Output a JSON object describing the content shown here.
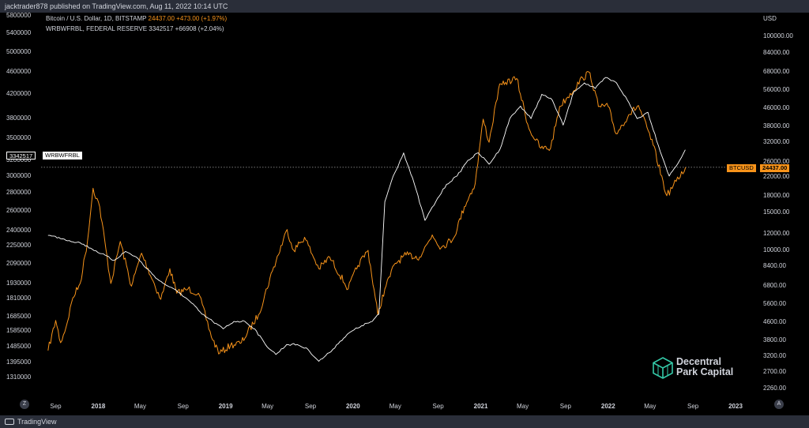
{
  "header": {
    "publisher": "jacktrader878 published on TradingView.com, Aug 11, 2022 10:14 UTC"
  },
  "legend": {
    "line1_name": "Bitcoin / U.S. Dollar, 1D, BITSTAMP",
    "line1_value": "24437.00",
    "line1_change": "+473.00 (+1.97%)",
    "line2_name": "WRBWFRBL, FEDERAL RESERVE",
    "line2_value": "3342517",
    "line2_change": "+66908 (+2.04%)"
  },
  "footer": {
    "brand": "TradingView",
    "btn_left": "Z",
    "btn_right": "A"
  },
  "watermark": {
    "line1": "Decentral",
    "line2": "Park Capital"
  },
  "colors": {
    "btc": "#f7931a",
    "fed": "#ffffff",
    "background": "#000000",
    "frame": "#2a2e39"
  },
  "labels": {
    "left_flag": "3342517",
    "left_flag_name": "WRBWFRBL",
    "right_flag_name": "BTCUSD",
    "right_flag_value": "24437.00"
  },
  "chart_data": {
    "type": "line",
    "x_ticks": [
      "Sep",
      "2018",
      "May",
      "Sep",
      "2019",
      "May",
      "Sep",
      "2020",
      "May",
      "Sep",
      "2021",
      "May",
      "Sep",
      "2022",
      "May",
      "Sep",
      "2023"
    ],
    "x_year_ticks": [
      "2018",
      "2019",
      "2020",
      "2021",
      "2022",
      "2023"
    ],
    "left_axis": {
      "series": "WRBWFRBL",
      "ticks": [
        "5800000",
        "5400000",
        "5000000",
        "4600000",
        "4200000",
        "3800000",
        "3500000",
        "3200000",
        "3000000",
        "2800000",
        "2600000",
        "2400000",
        "2250000",
        "2090000",
        "1930000",
        "1810000",
        "1685000",
        "1585000",
        "1485000",
        "1395000",
        "1310000"
      ],
      "scale": "log"
    },
    "right_axis": {
      "series": "BTCUSD",
      "unit": "USD",
      "ticks": [
        "100000.00",
        "84000.00",
        "68000.00",
        "56000.00",
        "46000.00",
        "38000.00",
        "32000.00",
        "26000.00",
        "22000.00",
        "18000.00",
        "15000.00",
        "12000.00",
        "10000.00",
        "8400.00",
        "6800.00",
        "5600.00",
        "4600.00",
        "3800.00",
        "3200.00",
        "2700.00",
        "2260.00"
      ],
      "scale": "log"
    },
    "series": [
      {
        "name": "BTCUSD",
        "color": "#f7931a",
        "x": [
          "2017-08-10",
          "2017-09-01",
          "2017-09-15",
          "2017-10-01",
          "2017-10-20",
          "2017-11-10",
          "2017-12-01",
          "2017-12-17",
          "2018-01-05",
          "2018-02-06",
          "2018-03-05",
          "2018-04-06",
          "2018-05-05",
          "2018-06-29",
          "2018-07-25",
          "2018-08-14",
          "2018-09-15",
          "2018-10-15",
          "2018-11-25",
          "2018-12-15",
          "2019-01-15",
          "2019-02-15",
          "2019-04-05",
          "2019-05-15",
          "2019-06-26",
          "2019-07-15",
          "2019-08-15",
          "2019-09-25",
          "2019-10-26",
          "2019-12-18",
          "2020-01-15",
          "2020-02-13",
          "2020-03-12",
          "2020-04-01",
          "2020-05-01",
          "2020-06-01",
          "2020-07-10",
          "2020-08-15",
          "2020-09-10",
          "2020-10-15",
          "2020-11-15",
          "2020-12-16",
          "2021-01-08",
          "2021-01-25",
          "2021-02-21",
          "2021-03-13",
          "2021-04-14",
          "2021-05-19",
          "2021-06-22",
          "2021-07-20",
          "2021-08-15",
          "2021-09-07",
          "2021-10-20",
          "2021-11-10",
          "2021-12-04",
          "2022-01-01",
          "2022-01-24",
          "2022-03-01",
          "2022-03-29",
          "2022-05-10",
          "2022-06-18",
          "2022-07-15",
          "2022-08-11"
        ],
        "y": [
          3400,
          4700,
          3700,
          4400,
          6000,
          7000,
          11000,
          19500,
          16000,
          7000,
          11000,
          6800,
          9700,
          5900,
          8200,
          6300,
          6600,
          6300,
          3800,
          3300,
          3600,
          3700,
          5000,
          8000,
          12500,
          10000,
          11500,
          8200,
          9300,
          6600,
          8500,
          10000,
          5000,
          6600,
          8700,
          9500,
          9300,
          11800,
          10300,
          11400,
          16000,
          20500,
          41000,
          32000,
          57000,
          61000,
          63500,
          37000,
          30000,
          30000,
          47000,
          52000,
          64000,
          67500,
          47000,
          47000,
          35000,
          43000,
          47500,
          31000,
          18000,
          21000,
          24437
        ]
      },
      {
        "name": "WRBWFRBL",
        "color": "#ffffff",
        "x": [
          "2017-08-10",
          "2017-09-10",
          "2017-10-10",
          "2017-11-10",
          "2017-12-10",
          "2018-01-10",
          "2018-02-15",
          "2018-03-20",
          "2018-04-20",
          "2018-05-20",
          "2018-06-25",
          "2018-07-25",
          "2018-08-25",
          "2018-09-25",
          "2018-10-25",
          "2018-11-25",
          "2018-12-25",
          "2019-01-25",
          "2019-02-25",
          "2019-03-25",
          "2019-04-25",
          "2019-05-25",
          "2019-06-25",
          "2019-07-25",
          "2019-08-25",
          "2019-09-25",
          "2019-10-25",
          "2019-11-25",
          "2019-12-25",
          "2020-01-25",
          "2020-02-25",
          "2020-03-15",
          "2020-04-01",
          "2020-04-25",
          "2020-05-25",
          "2020-06-25",
          "2020-07-25",
          "2020-08-25",
          "2020-09-25",
          "2020-10-25",
          "2020-11-25",
          "2020-12-25",
          "2021-01-25",
          "2021-02-25",
          "2021-03-25",
          "2021-04-25",
          "2021-05-25",
          "2021-06-25",
          "2021-07-25",
          "2021-08-25",
          "2021-09-25",
          "2021-10-25",
          "2021-11-25",
          "2021-12-25",
          "2022-01-25",
          "2022-02-25",
          "2022-03-25",
          "2022-04-25",
          "2022-05-25",
          "2022-06-25",
          "2022-07-25",
          "2022-08-10"
        ],
        "y": [
          2350000,
          2330000,
          2300000,
          2280000,
          2230000,
          2180000,
          2120000,
          2200000,
          2150000,
          2050000,
          1950000,
          1900000,
          1850000,
          1780000,
          1700000,
          1650000,
          1600000,
          1650000,
          1650000,
          1600000,
          1500000,
          1440000,
          1500000,
          1500000,
          1470000,
          1400000,
          1450000,
          1520000,
          1580000,
          1620000,
          1650000,
          1700000,
          2700000,
          3000000,
          3300000,
          2900000,
          2500000,
          2700000,
          2900000,
          3000000,
          3200000,
          3300000,
          3150000,
          3350000,
          3800000,
          4000000,
          3800000,
          4200000,
          4100000,
          3700000,
          4250000,
          4400000,
          4300000,
          4500000,
          4400000,
          4100000,
          3800000,
          3900000,
          3400000,
          3000000,
          3200000,
          3342517
        ]
      }
    ]
  }
}
